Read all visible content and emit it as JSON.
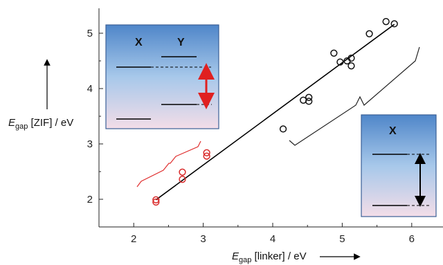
{
  "chart_data": {
    "type": "scatter",
    "title": "",
    "xlabel": {
      "symbol": "E",
      "subscript": "gap",
      "text": " [linker] / eV"
    },
    "ylabel": {
      "symbol": "E",
      "subscript": "gap",
      "text": " [ZIF] / eV"
    },
    "xlim": [
      1.5,
      6.45
    ],
    "ylim": [
      1.5,
      5.45
    ],
    "x_ticks": [
      "2",
      "3",
      "4",
      "5",
      "6"
    ],
    "y_ticks": [
      "2",
      "3",
      "4",
      "5"
    ],
    "series": [
      {
        "color": "#d92a2a",
        "x": [
          2.32,
          2.32,
          2.7,
          2.7,
          3.05,
          3.05
        ],
        "y": [
          1.95,
          1.99,
          2.36,
          2.49,
          2.78,
          2.84
        ]
      },
      {
        "color": "#111111",
        "x": [
          4.15,
          4.44,
          4.52,
          4.52,
          4.88,
          4.97,
          5.07,
          5.13,
          5.13,
          5.39,
          5.63,
          5.75
        ],
        "y": [
          3.27,
          3.79,
          3.77,
          3.84,
          4.64,
          4.48,
          4.5,
          4.41,
          4.55,
          4.99,
          5.21,
          5.17
        ]
      }
    ],
    "fit_line": {
      "x": [
        2.32,
        5.75
      ],
      "y": [
        1.99,
        5.16
      ],
      "color": "#000000"
    },
    "insets": [
      {
        "labels": [
          "X",
          "Y"
        ],
        "arrow_color": "#e02020"
      },
      {
        "labels": [
          "X"
        ],
        "arrow_color": "#000000"
      }
    ],
    "grid": false,
    "legend": "none"
  }
}
